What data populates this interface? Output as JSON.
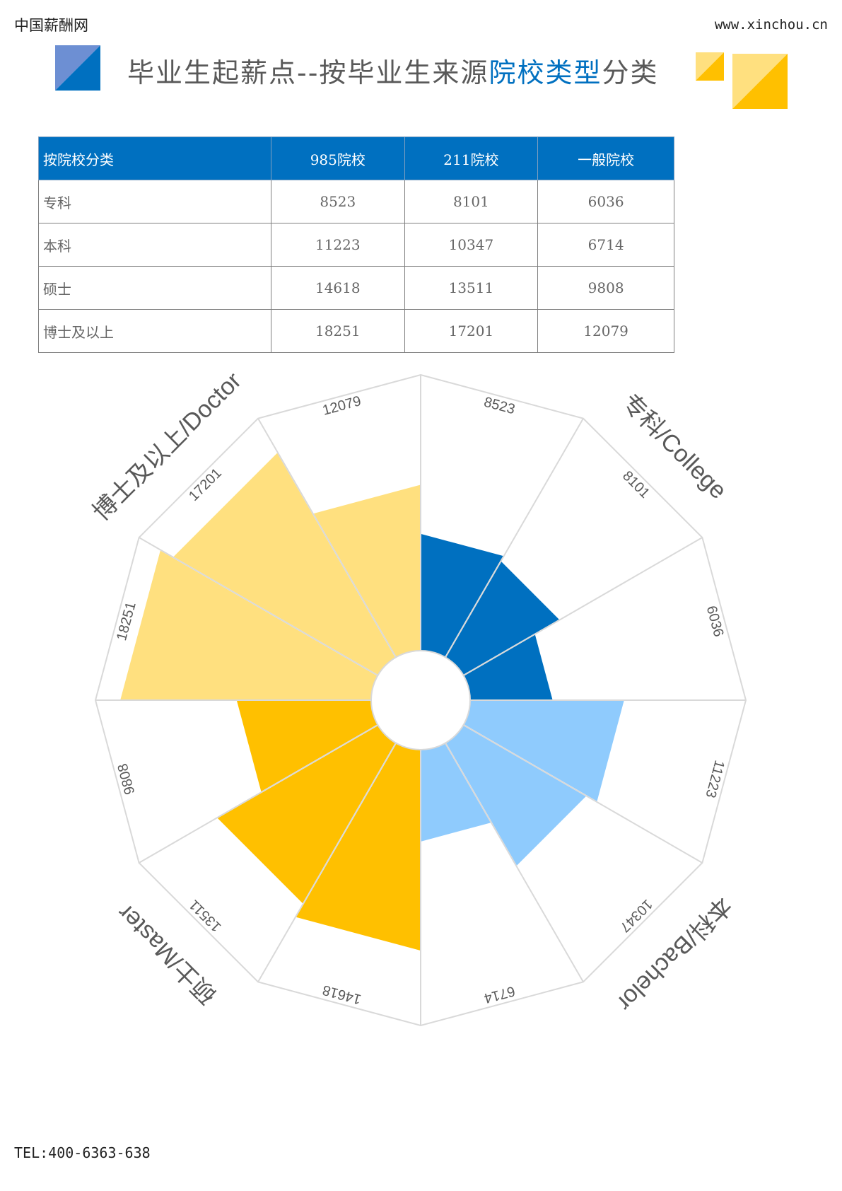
{
  "header": {
    "site_name": "中国薪酬网",
    "site_url": "www.xinchou.cn",
    "title_part1": "毕业生起薪点--按毕业生来源",
    "title_highlight": "院校类型",
    "title_part2": "分类"
  },
  "colors": {
    "brand_blue": "#0070c0",
    "light_blue": "#8fcbfd",
    "gold": "#ffc000",
    "light_gold": "#ffe07f",
    "deco_blue_light": "#6d8fd3",
    "deco_gold_light": "#ffe07f"
  },
  "table": {
    "headers": [
      "按院校分类",
      "985院校",
      "211院校",
      "一般院校"
    ],
    "rows": [
      {
        "label": "专科",
        "values": [
          "8523",
          "8101",
          "6036"
        ]
      },
      {
        "label": "本科",
        "values": [
          "11223",
          "10347",
          "6714"
        ]
      },
      {
        "label": "硕士",
        "values": [
          "14618",
          "13511",
          "9808"
        ]
      },
      {
        "label": "博士及以上",
        "values": [
          "18251",
          "17201",
          "12079"
        ]
      }
    ]
  },
  "chart_data": {
    "type": "polar-bar",
    "title": "",
    "groups": [
      {
        "label": "专科/College",
        "values": [
          8523,
          8101,
          6036
        ],
        "color": "#0070c0"
      },
      {
        "label": "本科/Bachelor",
        "values": [
          11223,
          10347,
          6714
        ],
        "color": "#8fcbfd"
      },
      {
        "label": "硕士/Master",
        "values": [
          14618,
          13511,
          9808
        ],
        "color": "#ffc000"
      },
      {
        "label": "博士及以上/Doctor",
        "values": [
          18251,
          17201,
          12079
        ],
        "color": "#ffe07f"
      }
    ],
    "radial_max": 20000,
    "grid": true,
    "legend": "none"
  },
  "footer": {
    "tel": "TEL:400-6363-638"
  }
}
